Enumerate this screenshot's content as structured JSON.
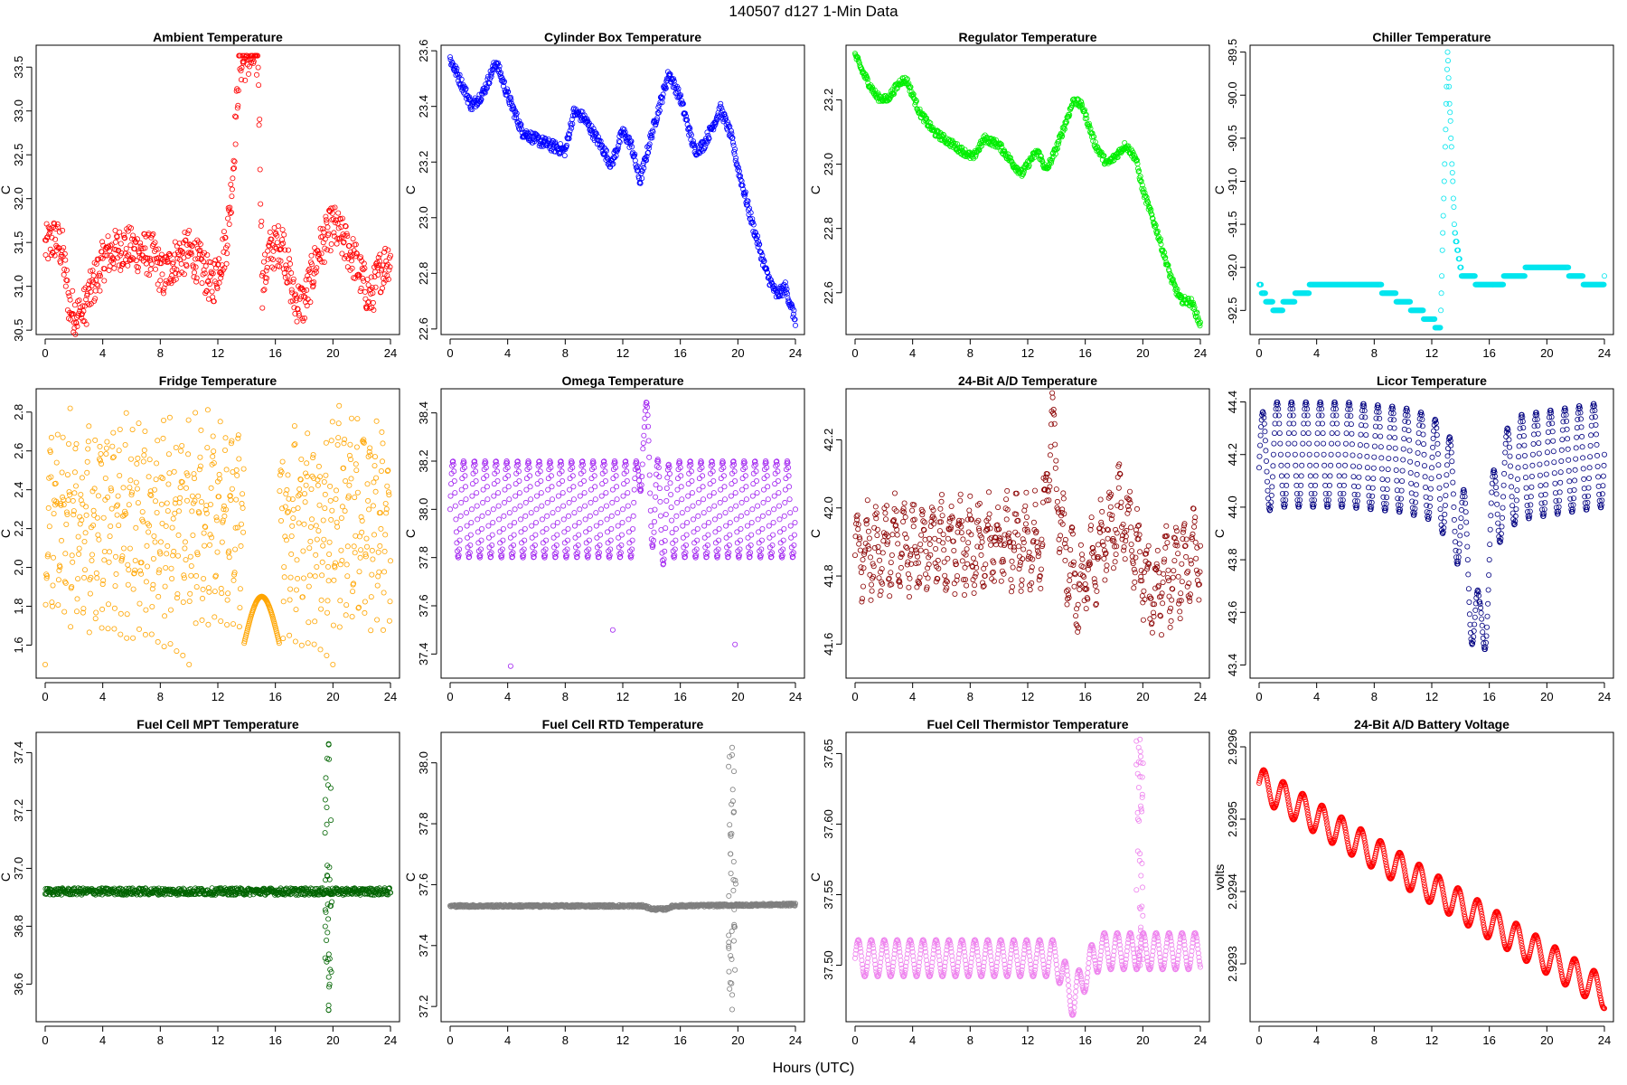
{
  "figure": {
    "title": "140507   d127   1-Min Data",
    "xlabel": "Hours (UTC)"
  },
  "chart_data": [
    {
      "type": "scatter",
      "title": "Ambient Temperature",
      "ylabel": "C",
      "color": "#ff0000",
      "xlim": [
        0,
        24
      ],
      "ylim": [
        30.45,
        33.75
      ],
      "xticks": [
        0,
        4,
        8,
        12,
        16,
        20,
        24
      ],
      "yticks": [
        30.5,
        31.0,
        31.5,
        32.0,
        32.5,
        33.0,
        33.5
      ],
      "knots": [
        [
          0,
          31.45
        ],
        [
          0.7,
          31.55
        ],
        [
          1.2,
          31.4
        ],
        [
          1.7,
          30.75
        ],
        [
          2.5,
          30.65
        ],
        [
          3.3,
          31.0
        ],
        [
          4.2,
          31.35
        ],
        [
          5.5,
          31.45
        ],
        [
          6.5,
          31.4
        ],
        [
          7.5,
          31.35
        ],
        [
          8.2,
          31.1
        ],
        [
          9,
          31.3
        ],
        [
          10,
          31.4
        ],
        [
          11,
          31.2
        ],
        [
          11.6,
          31.0
        ],
        [
          12.6,
          31.5
        ],
        [
          13,
          32.2
        ],
        [
          13.5,
          33.55
        ],
        [
          14.1,
          33.6
        ],
        [
          14.8,
          33.6
        ],
        [
          15.1,
          31.0
        ],
        [
          15.6,
          31.4
        ],
        [
          16.5,
          31.5
        ],
        [
          17.3,
          30.85
        ],
        [
          18,
          30.8
        ],
        [
          19,
          31.4
        ],
        [
          20,
          31.7
        ],
        [
          21,
          31.45
        ],
        [
          21.5,
          31.3
        ],
        [
          22.6,
          30.85
        ],
        [
          23.2,
          31.15
        ],
        [
          24,
          31.35
        ]
      ],
      "noise": 0.25,
      "clamp_max": 33.63
    },
    {
      "type": "scatter",
      "title": "Cylinder Box Temperature",
      "ylabel": "C",
      "color": "#0000ff",
      "xlim": [
        0,
        24
      ],
      "ylim": [
        22.58,
        23.62
      ],
      "xticks": [
        0,
        4,
        8,
        12,
        16,
        20,
        24
      ],
      "yticks": [
        22.6,
        22.8,
        23.0,
        23.2,
        23.4,
        23.6
      ],
      "knots": [
        [
          0,
          23.57
        ],
        [
          1,
          23.46
        ],
        [
          1.5,
          23.4
        ],
        [
          2.3,
          23.45
        ],
        [
          3.2,
          23.56
        ],
        [
          4,
          23.44
        ],
        [
          5,
          23.31
        ],
        [
          6,
          23.28
        ],
        [
          7,
          23.26
        ],
        [
          8,
          23.24
        ],
        [
          8.6,
          23.38
        ],
        [
          9.3,
          23.36
        ],
        [
          10,
          23.3
        ],
        [
          10.6,
          23.25
        ],
        [
          11.2,
          23.19
        ],
        [
          12,
          23.31
        ],
        [
          12.6,
          23.26
        ],
        [
          13.2,
          23.13
        ],
        [
          14,
          23.3
        ],
        [
          15.2,
          23.52
        ],
        [
          16,
          23.43
        ],
        [
          17,
          23.24
        ],
        [
          17.6,
          23.26
        ],
        [
          18.8,
          23.39
        ],
        [
          19.5,
          23.3
        ],
        [
          20,
          23.18
        ],
        [
          21,
          22.98
        ],
        [
          22,
          22.8
        ],
        [
          22.7,
          22.72
        ],
        [
          23.3,
          22.75
        ],
        [
          24,
          22.63
        ]
      ],
      "noise": 0.02
    },
    {
      "type": "scatter",
      "title": "Regulator Temperature",
      "ylabel": "C",
      "color": "#00ee00",
      "xlim": [
        0,
        24
      ],
      "ylim": [
        22.47,
        23.37
      ],
      "xticks": [
        0,
        4,
        8,
        12,
        16,
        20,
        24
      ],
      "yticks": [
        22.6,
        22.8,
        23.0,
        23.2
      ],
      "knots": [
        [
          0,
          23.34
        ],
        [
          0.6,
          23.28
        ],
        [
          1.5,
          23.21
        ],
        [
          2.2,
          23.2
        ],
        [
          3.2,
          23.26
        ],
        [
          3.6,
          23.26
        ],
        [
          4.5,
          23.16
        ],
        [
          5.5,
          23.1
        ],
        [
          6.5,
          23.07
        ],
        [
          7.5,
          23.04
        ],
        [
          8.2,
          23.02
        ],
        [
          9,
          23.08
        ],
        [
          10,
          23.06
        ],
        [
          11,
          23.0
        ],
        [
          11.6,
          22.97
        ],
        [
          12.3,
          23.02
        ],
        [
          12.7,
          23.04
        ],
        [
          13.3,
          22.98
        ],
        [
          14,
          23.05
        ],
        [
          15.2,
          23.2
        ],
        [
          15.8,
          23.18
        ],
        [
          16.7,
          23.06
        ],
        [
          17.5,
          23.0
        ],
        [
          18,
          23.02
        ],
        [
          18.8,
          23.06
        ],
        [
          19.5,
          23.02
        ],
        [
          20,
          22.92
        ],
        [
          21,
          22.79
        ],
        [
          22,
          22.64
        ],
        [
          22.6,
          22.58
        ],
        [
          23.4,
          22.57
        ],
        [
          24,
          22.5
        ]
      ],
      "noise": 0.012
    },
    {
      "type": "scatter",
      "title": "Chiller Temperature",
      "ylabel": "C",
      "color": "#00e5ee",
      "xlim": [
        0,
        24
      ],
      "ylim": [
        -92.78,
        -89.42
      ],
      "xticks": [
        0,
        4,
        8,
        12,
        16,
        20,
        24
      ],
      "yticks": [
        -89.5,
        -90.0,
        -90.5,
        -91.0,
        -91.5,
        -92.0,
        -92.5
      ],
      "knots": [
        [
          0,
          -92.2
        ],
        [
          0.6,
          -92.4
        ],
        [
          1.3,
          -92.5
        ],
        [
          2.0,
          -92.4
        ],
        [
          3,
          -92.3
        ],
        [
          4,
          -92.2
        ],
        [
          5,
          -92.25
        ],
        [
          6,
          -92.2
        ],
        [
          7,
          -92.25
        ],
        [
          8,
          -92.2
        ],
        [
          9,
          -92.3
        ],
        [
          10,
          -92.4
        ],
        [
          11,
          -92.5
        ],
        [
          11.8,
          -92.6
        ],
        [
          12.6,
          -92.7
        ],
        [
          13.1,
          -89.5
        ],
        [
          13.6,
          -91.6
        ],
        [
          14.1,
          -92.1
        ],
        [
          15,
          -92.15
        ],
        [
          16,
          -92.2
        ],
        [
          17,
          -92.15
        ],
        [
          18,
          -92.1
        ],
        [
          19,
          -92.0
        ],
        [
          20,
          -92.0
        ],
        [
          21,
          -92.0
        ],
        [
          22,
          -92.1
        ],
        [
          23,
          -92.2
        ],
        [
          24,
          -92.15
        ]
      ],
      "noise": 0.0,
      "quant": 0.1
    },
    {
      "type": "scatter",
      "title": "Fridge Temperature",
      "ylabel": "C",
      "color": "#ffa500",
      "xlim": [
        0,
        24
      ],
      "ylim": [
        1.43,
        2.92
      ],
      "xticks": [
        0,
        4,
        8,
        12,
        16,
        20,
        24
      ],
      "yticks": [
        1.6,
        1.8,
        2.0,
        2.2,
        2.4,
        2.6,
        2.8
      ],
      "knots": [
        [
          0,
          1.55
        ],
        [
          24,
          1.55
        ]
      ],
      "noise": 0.0,
      "cycling": true
    },
    {
      "type": "scatter",
      "title": "Omega Temperature",
      "ylabel": "C",
      "color": "#a020f0",
      "xlim": [
        0,
        24
      ],
      "ylim": [
        37.3,
        38.5
      ],
      "xticks": [
        0,
        4,
        8,
        12,
        16,
        20,
        24
      ],
      "yticks": [
        37.4,
        37.6,
        37.8,
        38.0,
        38.2,
        38.4
      ],
      "knots": [
        [
          0,
          38.0
        ],
        [
          13,
          38.0
        ],
        [
          13.4,
          38.4
        ],
        [
          14,
          38.05
        ],
        [
          14.8,
          37.97
        ],
        [
          15.5,
          38.0
        ],
        [
          24,
          38.0
        ]
      ],
      "noise": 0.0,
      "osc_amp": 0.2,
      "osc_period": 0.75,
      "outliers": [
        [
          4.2,
          37.35
        ],
        [
          11.3,
          37.5
        ],
        [
          19.8,
          37.44
        ]
      ]
    },
    {
      "type": "scatter",
      "title": "24-Bit A/D Temperature",
      "ylabel": "C",
      "color": "#8b0000",
      "xlim": [
        0,
        24
      ],
      "ylim": [
        41.5,
        42.35
      ],
      "xticks": [
        0,
        4,
        8,
        12,
        16,
        20,
        24
      ],
      "yticks": [
        41.6,
        41.8,
        42.0,
        42.2
      ],
      "knots": [
        [
          0,
          41.88
        ],
        [
          13,
          41.9
        ],
        [
          13.7,
          42.25
        ],
        [
          14.4,
          41.9
        ],
        [
          15.5,
          41.75
        ],
        [
          17,
          41.88
        ],
        [
          18.5,
          42.0
        ],
        [
          20.5,
          41.75
        ],
        [
          24,
          41.88
        ]
      ],
      "noise": 0.06,
      "osc_amp": 0.1,
      "osc_period": 0.65
    },
    {
      "type": "scatter",
      "title": "Licor Temperature",
      "ylabel": "C",
      "color": "#000080",
      "xlim": [
        0,
        24
      ],
      "ylim": [
        43.35,
        44.45
      ],
      "xticks": [
        0,
        4,
        8,
        12,
        16,
        20,
        24
      ],
      "yticks": [
        43.4,
        43.6,
        43.8,
        44.0,
        44.2,
        44.4
      ],
      "knots": [
        [
          0,
          44.15
        ],
        [
          1,
          44.2
        ],
        [
          6,
          44.2
        ],
        [
          10,
          44.18
        ],
        [
          12,
          44.15
        ],
        [
          13.5,
          44.05
        ],
        [
          14.5,
          43.8
        ],
        [
          15.3,
          43.45
        ],
        [
          15.8,
          43.7
        ],
        [
          16.5,
          44.05
        ],
        [
          18,
          44.15
        ],
        [
          24,
          44.2
        ]
      ],
      "noise": 0.0,
      "osc_amp": 0.2,
      "osc_period": 1.0
    },
    {
      "type": "scatter",
      "title": "Fuel Cell MPT Temperature",
      "ylabel": "C",
      "color": "#006400",
      "xlim": [
        0,
        24
      ],
      "ylim": [
        36.47,
        37.47
      ],
      "xticks": [
        0,
        4,
        8,
        12,
        16,
        20,
        24
      ],
      "yticks": [
        36.6,
        36.8,
        37.0,
        37.2,
        37.4
      ],
      "knots": [
        [
          0,
          36.92
        ],
        [
          24,
          36.92
        ]
      ],
      "noise": 0.012,
      "spike": {
        "x": 19.7,
        "lo": 36.51,
        "hi": 37.43
      }
    },
    {
      "type": "scatter",
      "title": "Fuel Cell RTD Temperature",
      "ylabel": "C",
      "color": "#7f7f7f",
      "xlim": [
        0,
        24
      ],
      "ylim": [
        37.15,
        38.1
      ],
      "xticks": [
        0,
        4,
        8,
        12,
        16,
        20,
        24
      ],
      "yticks": [
        37.2,
        37.4,
        37.6,
        37.8,
        38.0
      ],
      "knots": [
        [
          0,
          37.53
        ],
        [
          13.5,
          37.53
        ],
        [
          14,
          37.52
        ],
        [
          15,
          37.52
        ],
        [
          15.5,
          37.53
        ],
        [
          24,
          37.535
        ]
      ],
      "noise": 0.004,
      "spike": {
        "x": 19.6,
        "lo": 37.19,
        "hi": 38.05
      }
    },
    {
      "type": "scatter",
      "title": "Fuel Cell Thermistor Temperature",
      "ylabel": "C",
      "color": "#ee82ee",
      "xlim": [
        0,
        24
      ],
      "ylim": [
        37.46,
        37.665
      ],
      "xticks": [
        0,
        4,
        8,
        12,
        16,
        20,
        24
      ],
      "yticks": [
        37.5,
        37.55,
        37.6,
        37.65
      ],
      "knots": [
        [
          0,
          37.505
        ],
        [
          14,
          37.505
        ],
        [
          15.2,
          37.475
        ],
        [
          16,
          37.495
        ],
        [
          17,
          37.51
        ],
        [
          24,
          37.51
        ]
      ],
      "noise": 0.0,
      "osc_amp": 0.013,
      "osc_period": 0.9,
      "spike": {
        "x": 19.8,
        "lo": 37.5,
        "hi": 37.66
      }
    },
    {
      "type": "scatter",
      "title": "24-Bit A/D Battery Voltage",
      "ylabel": "volts",
      "color": "#ff0000",
      "xlim": [
        0,
        24
      ],
      "ylim": [
        2.92922,
        2.92962
      ],
      "xticks": [
        0,
        4,
        8,
        12,
        16,
        20,
        24
      ],
      "yticks": [
        2.9293,
        2.9294,
        2.9295,
        2.9296
      ],
      "knots": [
        [
          0,
          2.92955
        ],
        [
          24,
          2.92926
        ]
      ],
      "noise": 0.0,
      "osc_amp": 2.2e-05,
      "osc_period": 1.35
    }
  ]
}
